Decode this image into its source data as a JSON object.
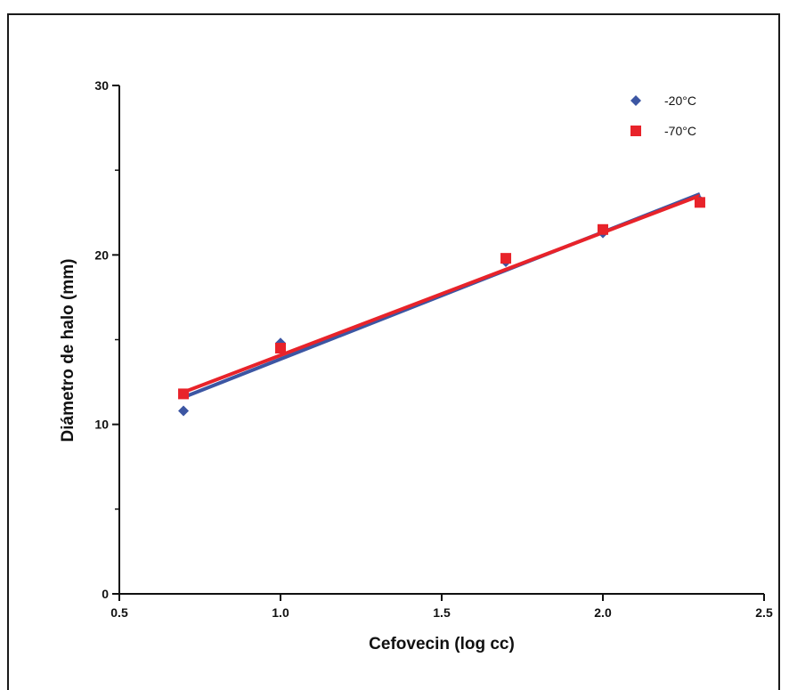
{
  "chart_data": {
    "type": "scatter",
    "xlabel": "Cefovecin (log cc)",
    "ylabel": "Diámetro de halo (mm)",
    "xlim": [
      0.5,
      2.5
    ],
    "ylim": [
      0,
      30
    ],
    "x_ticks": [
      "0.5",
      "1.0",
      "1.5",
      "2.0",
      "2.5"
    ],
    "y_ticks": [
      "0",
      "10",
      "20",
      "30"
    ],
    "grid": false,
    "legend_position": "top-right",
    "series": [
      {
        "name": "-20°C",
        "marker": "diamond",
        "color": "#3c56a3",
        "points": [
          [
            0.699,
            10.8
          ],
          [
            1.0,
            14.8
          ],
          [
            1.699,
            19.6
          ],
          [
            2.0,
            21.3
          ],
          [
            2.301,
            23.2
          ]
        ],
        "fit": [
          [
            0.699,
            11.6
          ],
          [
            2.301,
            23.6
          ]
        ]
      },
      {
        "name": "-70°C",
        "marker": "square",
        "color": "#e8232a",
        "points": [
          [
            0.699,
            11.8
          ],
          [
            1.0,
            14.5
          ],
          [
            1.699,
            19.8
          ],
          [
            2.0,
            21.5
          ],
          [
            2.301,
            23.1
          ]
        ],
        "fit": [
          [
            0.699,
            11.9
          ],
          [
            2.301,
            23.5
          ]
        ]
      }
    ]
  }
}
